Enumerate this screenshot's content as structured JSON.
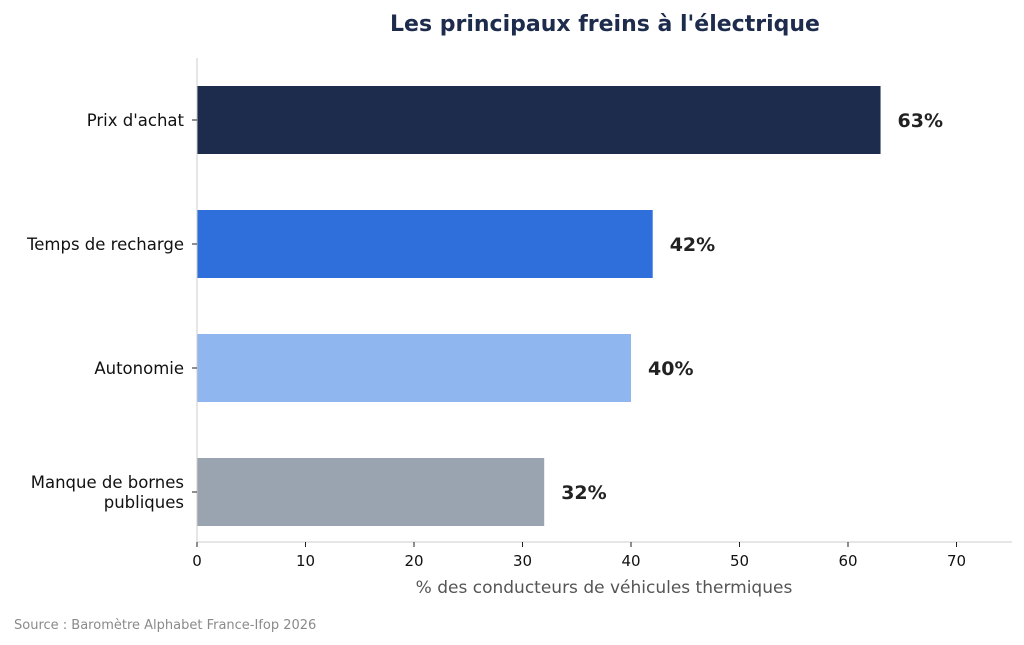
{
  "chart_data": {
    "type": "bar",
    "orientation": "horizontal",
    "title": "Les principaux freins à l'électrique",
    "xlabel": "% des conducteurs de véhicules thermiques",
    "ylabel": "",
    "categories": [
      "Prix d'achat",
      "Temps de recharge",
      "Autonomie",
      "Manque de bornes\npubliques"
    ],
    "values": [
      63,
      42,
      40,
      32
    ],
    "value_labels": [
      "63%",
      "42%",
      "40%",
      "32%"
    ],
    "colors": [
      "#1d2b4d",
      "#2f6fdc",
      "#8fb6ef",
      "#9aa4b0"
    ],
    "xlim": [
      0,
      75
    ],
    "xticks": [
      0,
      10,
      20,
      30,
      40,
      50,
      60,
      70
    ],
    "grid": false
  },
  "title_color": "#1d2b4d",
  "source": "Source : Baromètre Alphabet France-Ifop 2026"
}
